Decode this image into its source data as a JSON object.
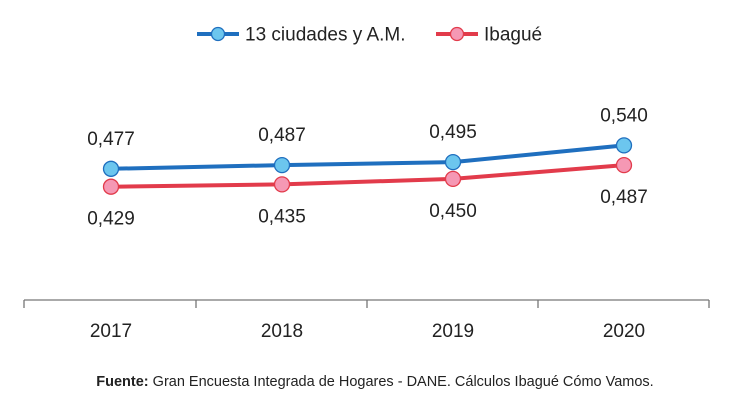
{
  "chart_data": {
    "type": "line",
    "categories": [
      "2017",
      "2018",
      "2019",
      "2020"
    ],
    "series": [
      {
        "name": "13 ciudades y A.M.",
        "values": [
          0.477,
          0.487,
          0.495,
          0.54
        ],
        "labels": [
          "0,477",
          "0,487",
          "0,495",
          "0,540"
        ],
        "line_color": "#1F6FBF",
        "marker_color": "#6CC6EE"
      },
      {
        "name": "Ibagué",
        "values": [
          0.429,
          0.435,
          0.45,
          0.487
        ],
        "labels": [
          "0,429",
          "0,435",
          "0,450",
          "0,487"
        ],
        "line_color": "#E23B4B",
        "marker_color": "#F598B4"
      }
    ],
    "legend_position": "top-center",
    "grid": false
  },
  "source": {
    "label": "Fuente:",
    "text": " Gran Encuesta Integrada de Hogares - DANE. Cálculos Ibagué Cómo Vamos."
  }
}
